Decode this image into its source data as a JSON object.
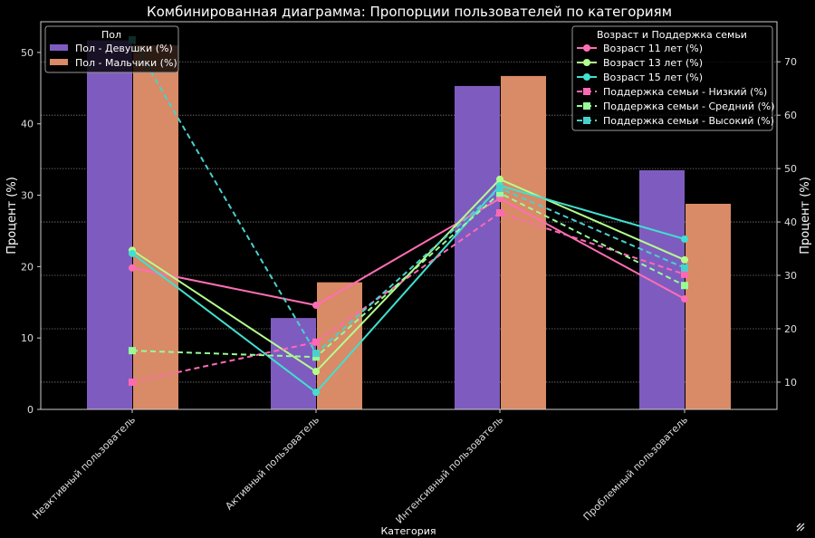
{
  "chart_data": {
    "type": "bar+line",
    "title": "Комбинированная диаграмма: Пропорции пользователей по категориям",
    "xlabel": "Категория",
    "ylabel": "Процент (%)",
    "ylabel_right": "Процент (%)",
    "categories": [
      "Неактивный пользователь",
      "Активный пользователь",
      "Интенсивный пользователь",
      "Проблемный пользователь"
    ],
    "ylim": [
      0,
      54.3
    ],
    "yticks": [
      0,
      10,
      20,
      30,
      40,
      50
    ],
    "ylim_right": [
      4.9,
      77.5
    ],
    "yticks_right": [
      10,
      20,
      30,
      40,
      50,
      60,
      70
    ],
    "grid": "horizontal dotted (right axis)",
    "bar_legend": {
      "title": "Пол",
      "placement": "top-left"
    },
    "line_legend": {
      "title": "Возраст и Поддержка семьи",
      "placement": "top-right"
    },
    "bar_series": [
      {
        "name": "Пол - Девушки (%)",
        "color": "#7e5cbf",
        "values": [
          51.7,
          12.8,
          45.3,
          33.5
        ]
      },
      {
        "name": "Пол - Мальчики (%)",
        "color": "#d98a66",
        "values": [
          51.0,
          17.8,
          46.7,
          28.8
        ]
      }
    ],
    "line_series": [
      {
        "name": "Возраст 11 лет (%)",
        "color": "#ff6eb4",
        "marker": "circle",
        "dash": false,
        "values": [
          31.4,
          24.4,
          44.4,
          25.6
        ]
      },
      {
        "name": "Возраст 13 лет (%)",
        "color": "#b4ff8c",
        "marker": "circle",
        "dash": false,
        "values": [
          34.7,
          12.0,
          48.0,
          32.9
        ]
      },
      {
        "name": "Возраст 15 лет (%)",
        "color": "#40e0d0",
        "marker": "circle",
        "dash": false,
        "values": [
          34.1,
          8.1,
          46.8,
          36.8
        ]
      },
      {
        "name": "Поддержка семьи - Низкий (%)",
        "color": "#ff69b4",
        "marker": "square",
        "dash": true,
        "values": [
          10.0,
          17.5,
          41.7,
          30.2
        ]
      },
      {
        "name": "Поддержка семьи - Средний (%)",
        "color": "#98fb98",
        "marker": "square",
        "dash": true,
        "values": [
          15.9,
          14.7,
          45.4,
          28.1
        ]
      },
      {
        "name": "Поддержка семьи - Высокий (%)",
        "color": "#48d1cc",
        "marker": "square",
        "dash": true,
        "values": [
          74.1,
          15.4,
          46.3,
          31.4
        ]
      }
    ]
  }
}
